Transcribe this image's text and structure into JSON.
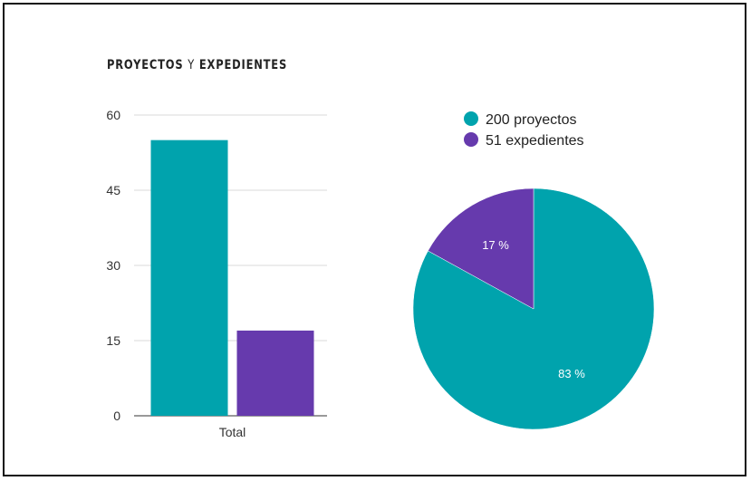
{
  "chart_data": [
    {
      "type": "bar",
      "title_parts": [
        "PROYECTOS",
        "Y",
        "EXPEDIENTES"
      ],
      "categories": [
        "Total"
      ],
      "series": [
        {
          "values": [
            55
          ],
          "color": "#00a3ad"
        },
        {
          "values": [
            17
          ],
          "color": "#663aad"
        }
      ],
      "ylim": [
        0,
        60
      ],
      "yticks": [
        "0",
        "15",
        "30",
        "45",
        "60"
      ],
      "grid": true
    },
    {
      "type": "pie",
      "slices": [
        {
          "label": "200 proyectos",
          "value": 83,
          "value_label": "83 %",
          "color": "#00a3ad"
        },
        {
          "label": "51 expedientes",
          "value": 17,
          "value_label": "17 %",
          "color": "#663aad"
        }
      ],
      "legend_position": "top"
    }
  ]
}
